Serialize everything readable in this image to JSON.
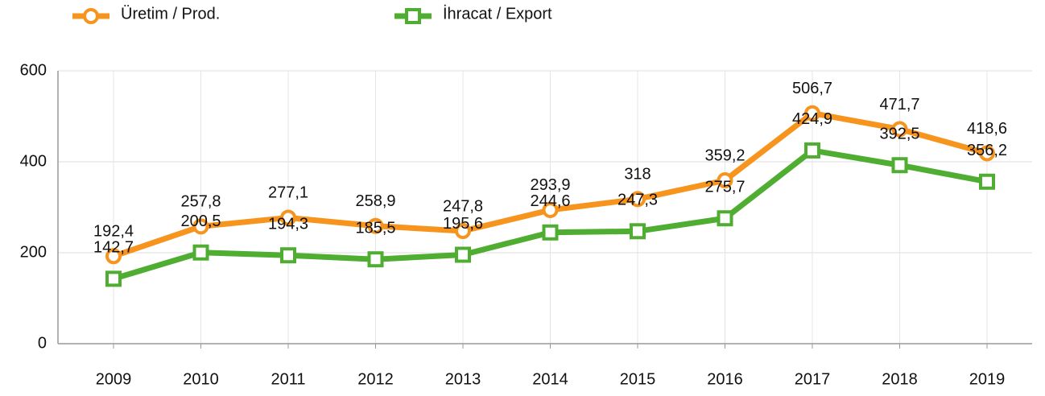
{
  "chart_data": {
    "type": "line",
    "categories": [
      "2009",
      "2010",
      "2011",
      "2012",
      "2013",
      "2014",
      "2015",
      "2016",
      "2017",
      "2018",
      "2019"
    ],
    "series": [
      {
        "name": "Üretim / Prod.",
        "color": "#f7941d",
        "marker": "circle",
        "values": [
          192.4,
          257.8,
          277.1,
          258.9,
          247.8,
          293.9,
          318,
          359.2,
          506.7,
          471.7,
          418.6
        ],
        "value_labels": [
          "192,4",
          "257,8",
          "277,1",
          "258,9",
          "247,8",
          "293,9",
          "318",
          "359,2",
          "506,7",
          "471,7",
          "418,6"
        ]
      },
      {
        "name": "İhracat / Export",
        "color": "#4fae32",
        "marker": "square",
        "values": [
          142.7,
          200.5,
          194.3,
          185.5,
          195.6,
          244.6,
          247.3,
          275.7,
          424.9,
          392.5,
          356.2
        ],
        "value_labels": [
          "142,7",
          "200,5",
          "194,3",
          "185,5",
          "195,6",
          "244,6",
          "247,3",
          "275,7",
          "424,9",
          "392,5",
          "356,2"
        ]
      }
    ],
    "ylim": [
      0,
      600
    ],
    "yticks": [
      0,
      200,
      400,
      600
    ],
    "grid": true,
    "legend": "top-left"
  }
}
